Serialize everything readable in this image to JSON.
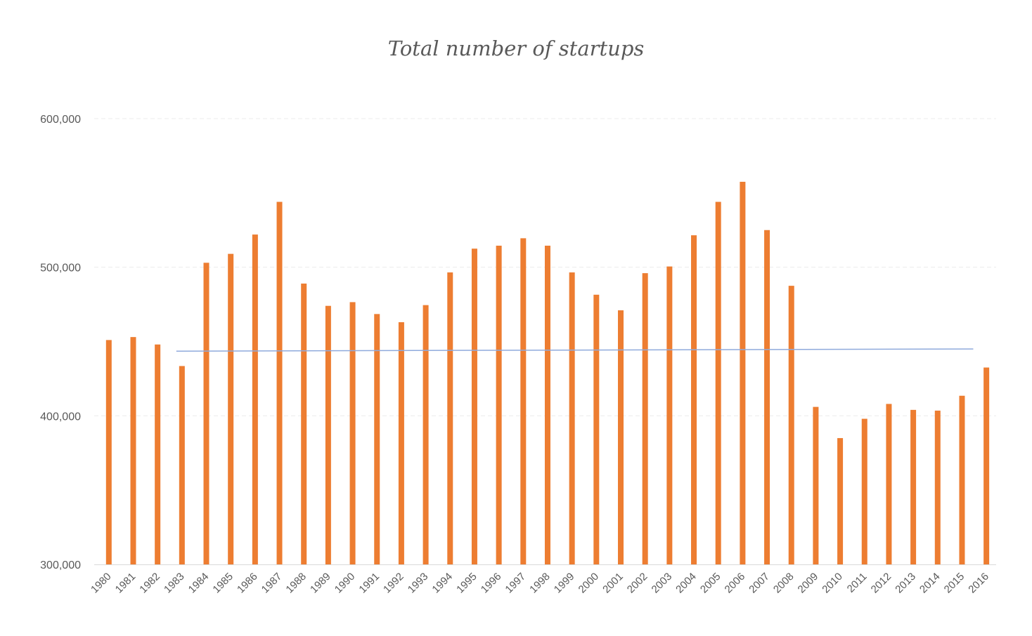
{
  "chart_data": {
    "type": "bar",
    "title": "Total number of startups",
    "xlabel": "",
    "ylabel": "",
    "ylim": [
      300000,
      600000
    ],
    "yticks": [
      "300,000",
      "400,000",
      "500,000",
      "600,000"
    ],
    "ytick_values": [
      300000,
      400000,
      500000,
      600000
    ],
    "grid": true,
    "categories": [
      "1980",
      "1981",
      "1982",
      "1983",
      "1984",
      "1985",
      "1986",
      "1987",
      "1988",
      "1989",
      "1990",
      "1991",
      "1992",
      "1993",
      "1994",
      "1995",
      "1996",
      "1997",
      "1998",
      "1999",
      "2000",
      "2001",
      "2002",
      "2003",
      "2004",
      "2005",
      "2006",
      "2007",
      "2008",
      "2009",
      "2010",
      "2011",
      "2012",
      "2013",
      "2014",
      "2015",
      "2016"
    ],
    "values": [
      451000,
      453000,
      448000,
      433500,
      503000,
      509000,
      522000,
      544000,
      489000,
      474000,
      476500,
      468500,
      463000,
      474500,
      496500,
      512500,
      514500,
      519500,
      514500,
      496500,
      481500,
      471000,
      496000,
      500500,
      521500,
      544000,
      557500,
      525000,
      487500,
      406000,
      385000,
      398000,
      408000,
      404000,
      403500,
      413500,
      432500
    ],
    "trendline": {
      "start": 443500,
      "end": 445000
    },
    "colors": {
      "bars": "#ED7D31",
      "trendline": "#8FAADC",
      "gridline": "#EBEBEB",
      "axis": "#D9D9D9"
    }
  }
}
